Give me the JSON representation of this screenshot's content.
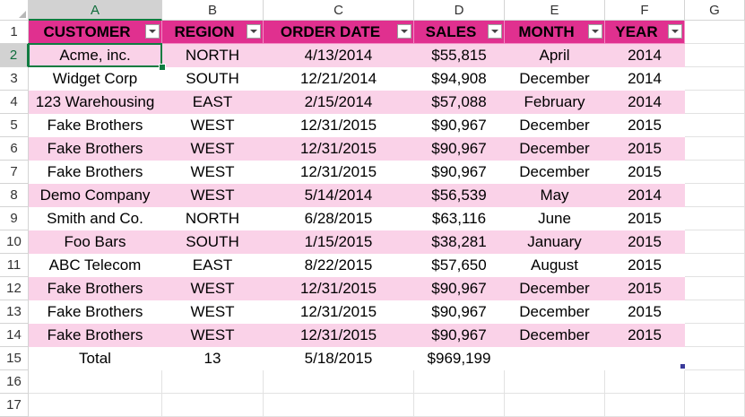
{
  "columns": [
    "A",
    "B",
    "C",
    "D",
    "E",
    "F",
    "G"
  ],
  "row_numbers": [
    "1",
    "2",
    "3",
    "4",
    "5",
    "6",
    "7",
    "8",
    "9",
    "10",
    "11",
    "12",
    "13",
    "14",
    "15",
    "16",
    "17"
  ],
  "headers": [
    "CUSTOMER",
    "REGION",
    "ORDER DATE",
    "SALES",
    "MONTH",
    "YEAR"
  ],
  "rows": [
    [
      "Acme, inc.",
      "NORTH",
      "4/13/2014",
      "$55,815",
      "April",
      "2014"
    ],
    [
      "Widget Corp",
      "SOUTH",
      "12/21/2014",
      "$94,908",
      "December",
      "2014"
    ],
    [
      "123 Warehousing",
      "EAST",
      "2/15/2014",
      "$57,088",
      "February",
      "2014"
    ],
    [
      "Fake Brothers",
      "WEST",
      "12/31/2015",
      "$90,967",
      "December",
      "2015"
    ],
    [
      "Fake Brothers",
      "WEST",
      "12/31/2015",
      "$90,967",
      "December",
      "2015"
    ],
    [
      "Fake Brothers",
      "WEST",
      "12/31/2015",
      "$90,967",
      "December",
      "2015"
    ],
    [
      "Demo Company",
      "WEST",
      "5/14/2014",
      "$56,539",
      "May",
      "2014"
    ],
    [
      "Smith and Co.",
      "NORTH",
      "6/28/2015",
      "$63,116",
      "June",
      "2015"
    ],
    [
      "Foo Bars",
      "SOUTH",
      "1/15/2015",
      "$38,281",
      "January",
      "2015"
    ],
    [
      "ABC Telecom",
      "EAST",
      "8/22/2015",
      "$57,650",
      "August",
      "2015"
    ],
    [
      "Fake Brothers",
      "WEST",
      "12/31/2015",
      "$90,967",
      "December",
      "2015"
    ],
    [
      "Fake Brothers",
      "WEST",
      "12/31/2015",
      "$90,967",
      "December",
      "2015"
    ],
    [
      "Fake Brothers",
      "WEST",
      "12/31/2015",
      "$90,967",
      "December",
      "2015"
    ]
  ],
  "total_row": [
    "Total",
    "13",
    "5/18/2015",
    "$969,199",
    "",
    ""
  ],
  "selected_cell": "A2",
  "colors": {
    "header_fill": "#e0308f",
    "band_fill": "#fad2e8",
    "selection": "#107c41"
  },
  "icons": {
    "filter": "chevron-down-icon",
    "select_all": "select-all-triangle-icon"
  }
}
